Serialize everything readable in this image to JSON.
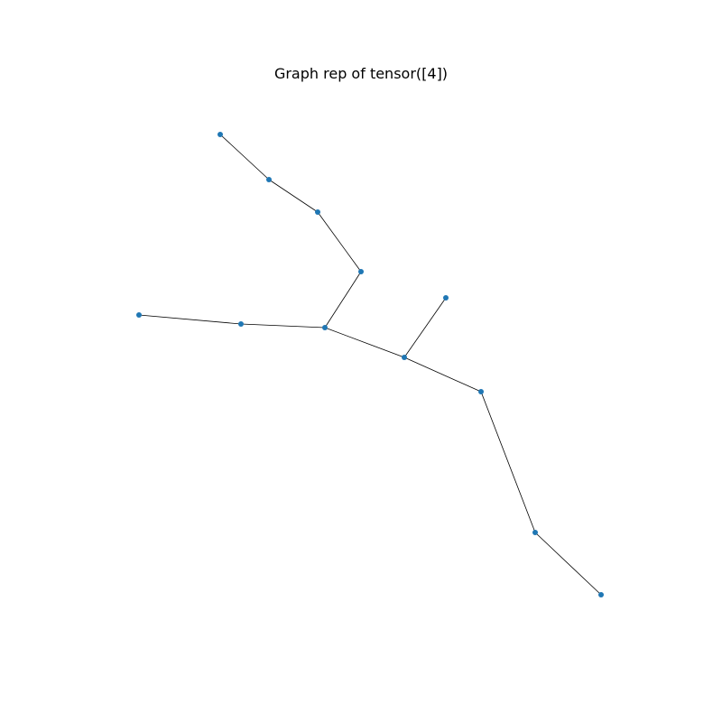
{
  "title": "Graph rep of tensor([4])",
  "colors": {
    "node": "#1f77b4",
    "edge": "#000000"
  },
  "graph": {
    "nodes": [
      {
        "id": "n0"
      },
      {
        "id": "n1"
      },
      {
        "id": "n2"
      },
      {
        "id": "n3"
      },
      {
        "id": "n4"
      },
      {
        "id": "n5"
      },
      {
        "id": "n6"
      },
      {
        "id": "n7"
      },
      {
        "id": "n8"
      },
      {
        "id": "n9"
      },
      {
        "id": "n10"
      },
      {
        "id": "n11"
      }
    ],
    "edges": [
      [
        "n0",
        "n1"
      ],
      [
        "n1",
        "n2"
      ],
      [
        "n2",
        "n3"
      ],
      [
        "n3",
        "n4"
      ],
      [
        "n5",
        "n6"
      ],
      [
        "n6",
        "n4"
      ],
      [
        "n4",
        "n7"
      ],
      [
        "n7",
        "n8"
      ],
      [
        "n7",
        "n9"
      ],
      [
        "n9",
        "n10"
      ],
      [
        "n10",
        "n11"
      ]
    ]
  }
}
